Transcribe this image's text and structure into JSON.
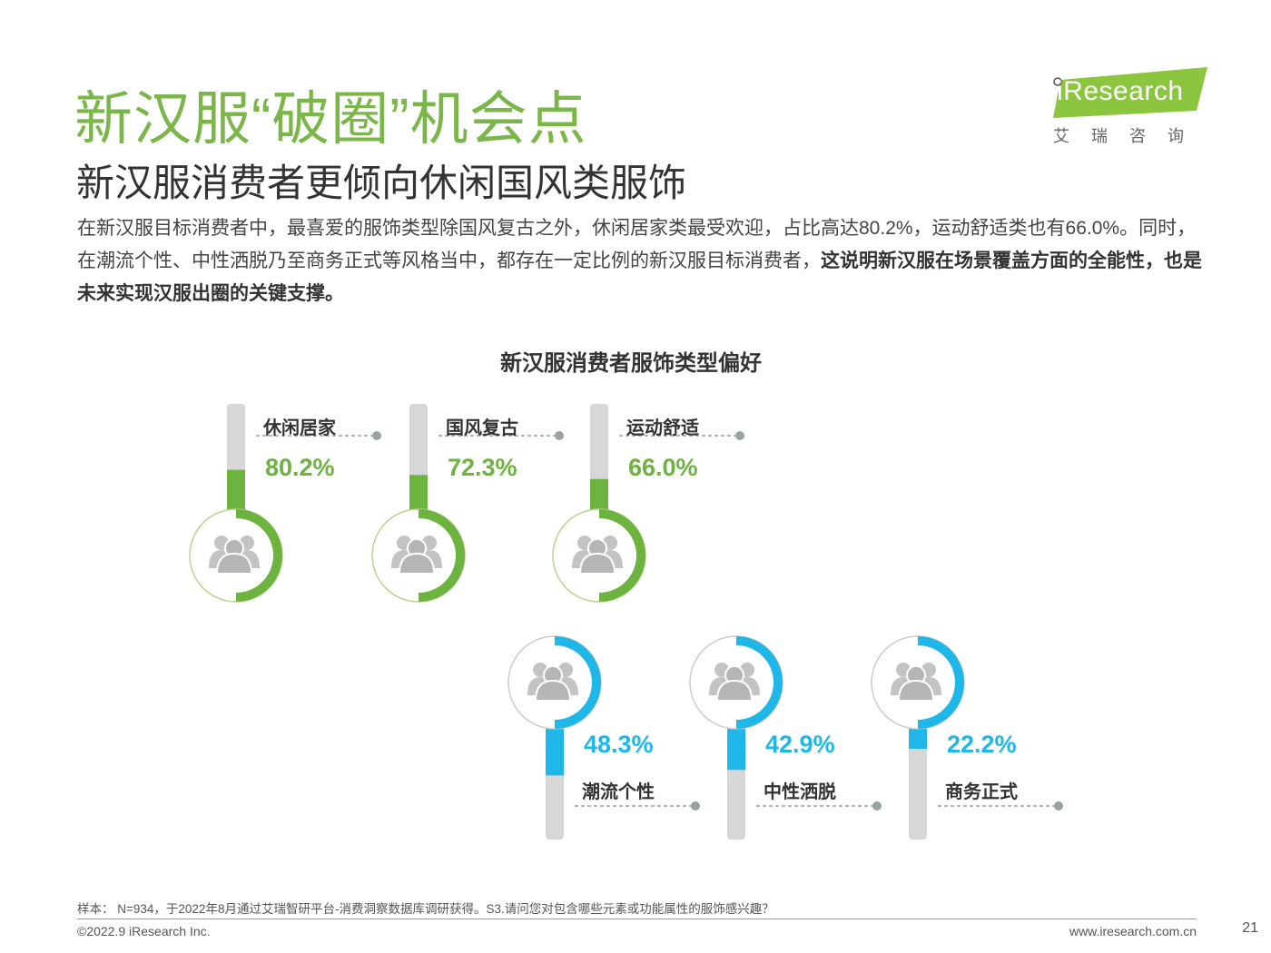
{
  "slide": {
    "title": "新汉服“破圈”机会点",
    "subtitle": "新汉服消费者更倾向休闲国风类服饰",
    "body_plain": "在新汉服目标消费者中，最喜爱的服饰类型除国风复古之外，休闲居家类最受欢迎，占比高达80.2%，运动舒适类也有66.0%。同时，在潮流个性、中性洒脱乃至商务正式等风格当中，都存在一定比例的新汉服目标消费者，",
    "body_bold": "这说明新汉服在场景覆盖方面的全能性，也是未来实现汉服出圈的关键支撑。"
  },
  "logo": {
    "text": "iResearch",
    "cn_text": "艾瑞咨询",
    "color": "#8cc63f"
  },
  "chart_data": {
    "type": "bar",
    "title": "新汉服消费者服饰类型偏好",
    "unit": "%",
    "ylim": [
      0,
      100
    ],
    "categories": [
      "休闲居家",
      "国风复古",
      "运动舒适",
      "潮流个性",
      "中性洒脱",
      "商务正式"
    ],
    "values": [
      80.2,
      72.3,
      66.0,
      48.3,
      42.9,
      22.2
    ],
    "value_labels": [
      "80.2%",
      "72.3%",
      "66.0%",
      "48.3%",
      "42.9%",
      "22.2%"
    ],
    "colors": [
      "#6db33f",
      "#6db33f",
      "#6db33f",
      "#1fb6e8",
      "#1fb6e8",
      "#1fb6e8"
    ],
    "icon": "people-icon"
  },
  "footer": {
    "note": "样本： N=934，于2022年8月通过艾瑞智研平台-消费洞察数据库调研获得。S3.请问您对包含哪些元素或功能属性的服饰感兴趣？",
    "copyright": "©2022.9 iResearch Inc.",
    "website": "www.iresearch.com.cn",
    "page_number": "21"
  }
}
